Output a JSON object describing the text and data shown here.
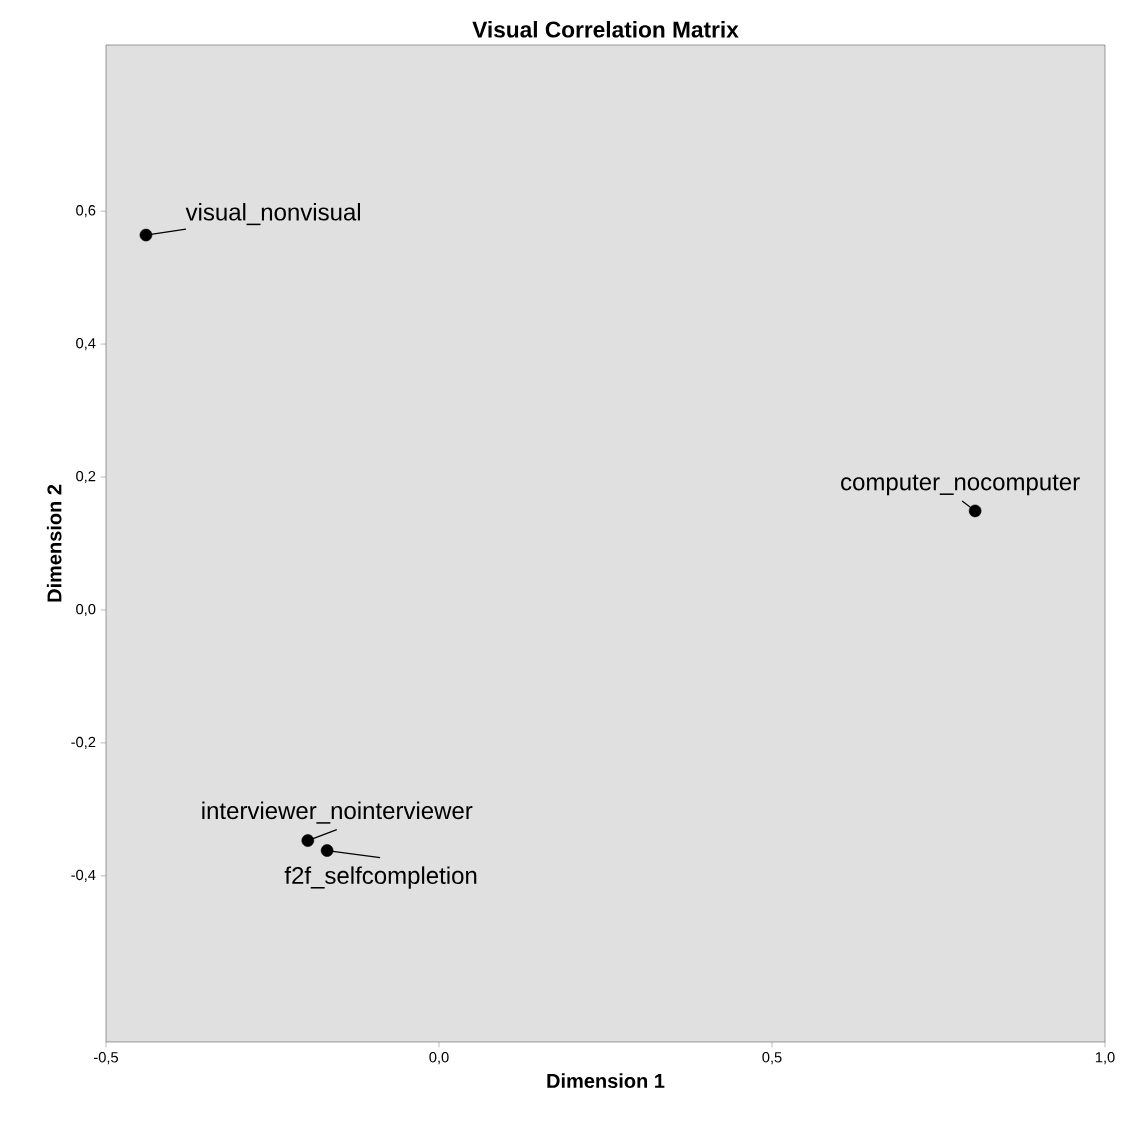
{
  "chart_data": {
    "type": "scatter",
    "title": "Visual Correlation Matrix",
    "xlabel": "Dimension 1",
    "ylabel": "Dimension 2",
    "x": [
      -0.44,
      0.805,
      -0.197,
      -0.168
    ],
    "values": [
      0.564,
      0.149,
      -0.347,
      -0.362
    ],
    "color": "#000000",
    "marker": "circle",
    "grid": false,
    "xlim": [
      -0.5,
      1.0
    ],
    "ylim": [
      -0.65,
      0.85
    ],
    "xticks": [
      {
        "value": -0.5,
        "label": "-0,5"
      },
      {
        "value": 0.0,
        "label": "0,0"
      },
      {
        "value": 0.5,
        "label": "0,5"
      },
      {
        "value": 1.0,
        "label": "1,0"
      }
    ],
    "yticks": [
      {
        "value": -0.4,
        "label": "-0,4"
      },
      {
        "value": -0.2,
        "label": "-0,2"
      },
      {
        "value": 0.0,
        "label": "0,0"
      },
      {
        "value": 0.2,
        "label": "0,2"
      },
      {
        "value": 0.4,
        "label": "0,4"
      },
      {
        "value": 0.6,
        "label": "0,6"
      }
    ],
    "annotations": [
      {
        "text": "visual_nonvisual",
        "x": -0.44,
        "y": 0.564
      },
      {
        "text": "computer_nocomputer",
        "x": 0.805,
        "y": 0.149
      },
      {
        "text": "interviewer_nointerviewer",
        "x": -0.197,
        "y": -0.347
      },
      {
        "text": "f2f_selfcompletion",
        "x": -0.168,
        "y": -0.362
      }
    ]
  }
}
